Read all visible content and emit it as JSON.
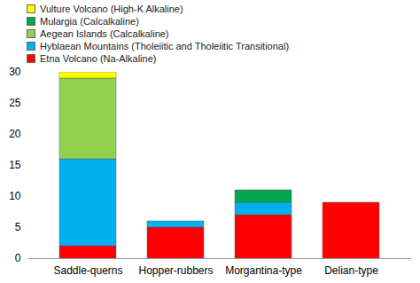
{
  "chart_data": {
    "type": "bar",
    "stacked": true,
    "categories": [
      "Saddle-querns",
      "Hopper-rubbers",
      "Morgantina-type",
      "Delian-type"
    ],
    "series": [
      {
        "name": "Etna Volcano (Na-Alkaline)",
        "color": "#ff0000",
        "values": [
          2,
          5,
          7,
          9
        ]
      },
      {
        "name": "Hyblaean Mountains (Tholeiitic and Tholeiitic Transitional)",
        "color": "#00b0f0",
        "values": [
          14,
          1,
          2,
          0
        ]
      },
      {
        "name": "Aegean Islands (Calcalkaline)",
        "color": "#92d050",
        "values": [
          13,
          0,
          0,
          0
        ]
      },
      {
        "name": "Mulargia (Calcalkaline)",
        "color": "#00a650",
        "values": [
          0,
          0,
          2,
          0
        ]
      },
      {
        "name": "Vulture Volcano (High-K Alkaline)",
        "color": "#ffff00",
        "values": [
          1,
          0,
          0,
          0
        ]
      }
    ],
    "ylim": [
      0,
      30
    ],
    "yticks": [
      0,
      5,
      10,
      15,
      20,
      25,
      30
    ],
    "grid": false,
    "legend": "top-left"
  }
}
